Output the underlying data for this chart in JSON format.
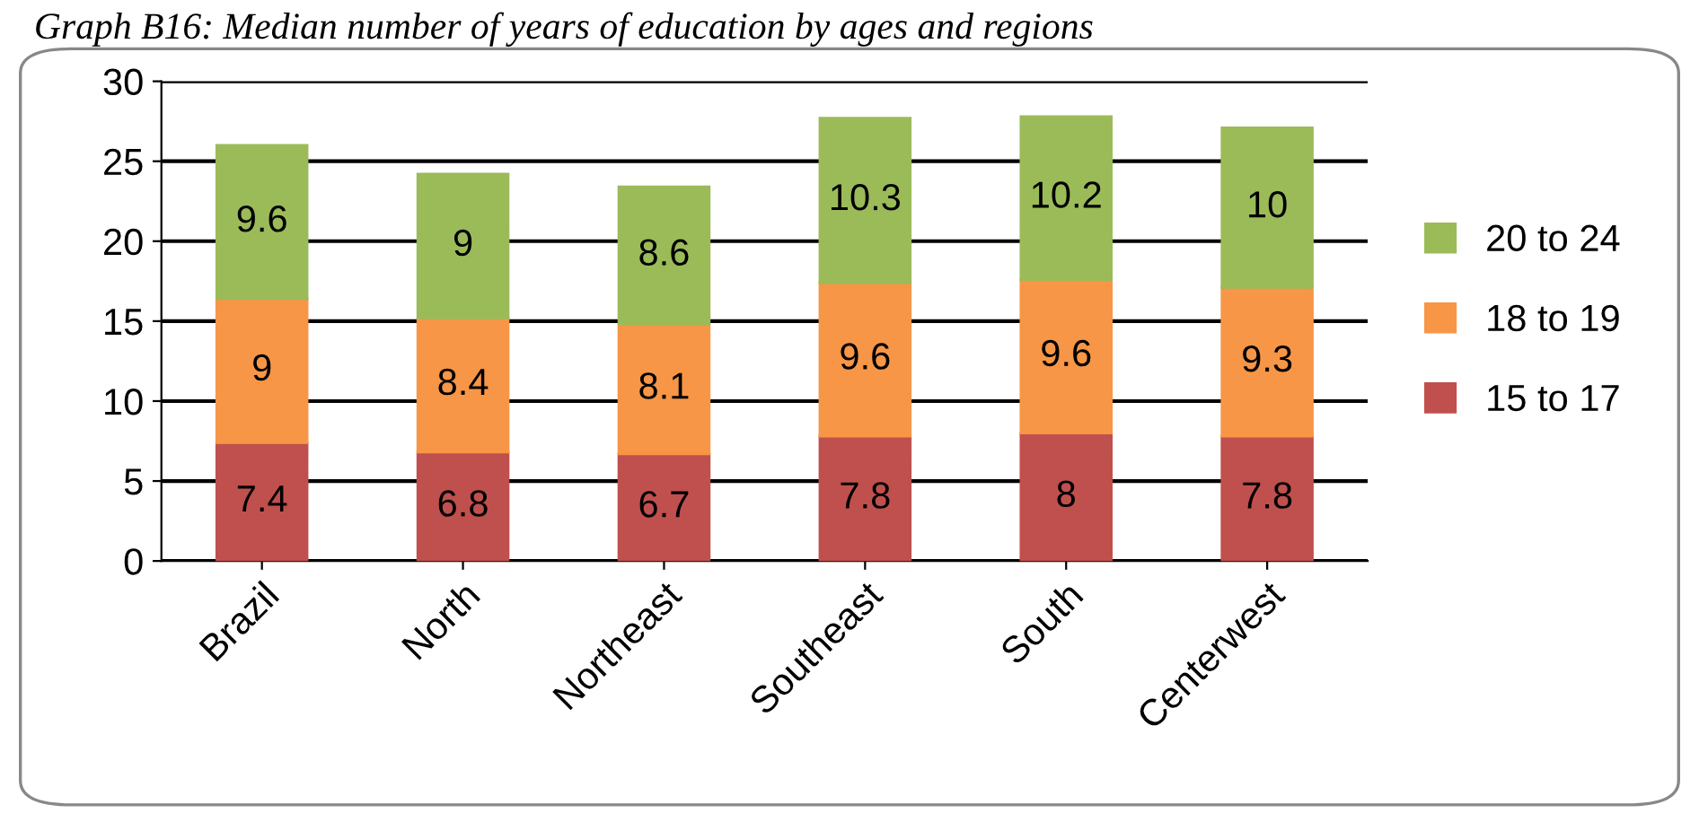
{
  "chart_data": {
    "type": "bar",
    "title": "Graph B16: Median number of years of education by ages and regions",
    "categories": [
      "Brazil",
      "North",
      "Northeast",
      "Southeast",
      "South",
      "Centerwest"
    ],
    "stacked": true,
    "data_labels": true,
    "series": [
      {
        "name": "15 to 17",
        "color": "#c0504d",
        "values": [
          7.4,
          6.8,
          6.7,
          7.8,
          8,
          7.8
        ]
      },
      {
        "name": "18 to 19",
        "color": "#f79646",
        "values": [
          9,
          8.4,
          8.1,
          9.6,
          9.6,
          9.3
        ]
      },
      {
        "name": "20 to 24",
        "color": "#9bbb59",
        "values": [
          9.6,
          9,
          8.6,
          10.3,
          10.2,
          10
        ]
      }
    ],
    "ylim": [
      0,
      30
    ],
    "yticks": [
      0,
      5,
      10,
      15,
      20,
      25,
      30
    ],
    "grid": "y",
    "legend": "right"
  }
}
